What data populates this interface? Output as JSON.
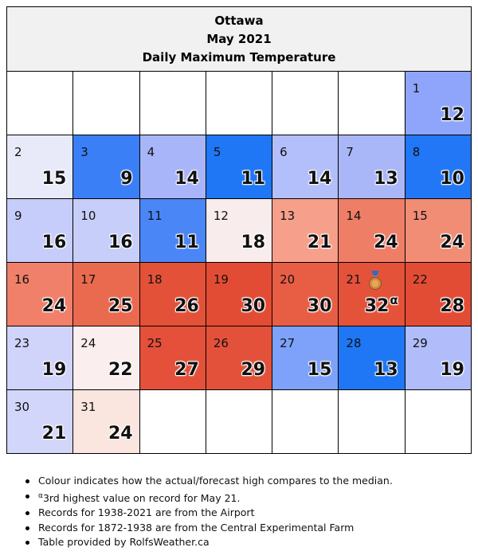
{
  "header": {
    "city": "Ottawa",
    "month": "May 2021",
    "subtitle": "Daily Maximum Temperature"
  },
  "chart_data": {
    "type": "table",
    "title": "Ottawa May 2021 Daily Maximum Temperature",
    "start_weekday_index": 6,
    "days": [
      {
        "day": "1",
        "temp": "12",
        "color": "#8ea5fb"
      },
      {
        "day": "2",
        "temp": "15",
        "color": "#e8eafa"
      },
      {
        "day": "3",
        "temp": "9",
        "color": "#3b7ff7"
      },
      {
        "day": "4",
        "temp": "14",
        "color": "#a8b6f9"
      },
      {
        "day": "5",
        "temp": "11",
        "color": "#1f77f5"
      },
      {
        "day": "6",
        "temp": "14",
        "color": "#b3bffa"
      },
      {
        "day": "7",
        "temp": "13",
        "color": "#a9b7f9"
      },
      {
        "day": "8",
        "temp": "10",
        "color": "#2177f5"
      },
      {
        "day": "9",
        "temp": "16",
        "color": "#c6cdfa"
      },
      {
        "day": "10",
        "temp": "16",
        "color": "#c8cefa"
      },
      {
        "day": "11",
        "temp": "11",
        "color": "#4b86f6"
      },
      {
        "day": "12",
        "temp": "18",
        "color": "#f8ecec"
      },
      {
        "day": "13",
        "temp": "21",
        "color": "#f6a08c"
      },
      {
        "day": "14",
        "temp": "24",
        "color": "#ef7e66"
      },
      {
        "day": "15",
        "temp": "24",
        "color": "#f18c75"
      },
      {
        "day": "16",
        "temp": "24",
        "color": "#f08069"
      },
      {
        "day": "17",
        "temp": "25",
        "color": "#ea6a50"
      },
      {
        "day": "18",
        "temp": "26",
        "color": "#e45139"
      },
      {
        "day": "19",
        "temp": "30",
        "color": "#e34c34"
      },
      {
        "day": "20",
        "temp": "30",
        "color": "#e85e44"
      },
      {
        "day": "21",
        "temp": "32",
        "record_mark": "α",
        "medal": "bronze-medal",
        "color": "#e4523a"
      },
      {
        "day": "22",
        "temp": "28",
        "color": "#e34c34"
      },
      {
        "day": "23",
        "temp": "19",
        "color": "#d0d3fa"
      },
      {
        "day": "24",
        "temp": "22",
        "color": "#fbeeee"
      },
      {
        "day": "25",
        "temp": "27",
        "color": "#e4503a"
      },
      {
        "day": "26",
        "temp": "29",
        "color": "#e4513a"
      },
      {
        "day": "27",
        "temp": "15",
        "color": "#7ea2f9"
      },
      {
        "day": "28",
        "temp": "13",
        "color": "#1f77f5"
      },
      {
        "day": "29",
        "temp": "19",
        "color": "#b1bdfa"
      },
      {
        "day": "30",
        "temp": "21",
        "color": "#d2d6fa"
      },
      {
        "day": "31",
        "temp": "24",
        "color": "#fbe5df"
      }
    ]
  },
  "notes": {
    "line1": "Colour indicates how the actual/forecast high compares to the median.",
    "line2_mark": "α",
    "line2": "3rd highest value on record for May 21.",
    "line3": "Records for 1938-2021 are from the Airport",
    "line4": "Records for 1872-1938 are from the Central Experimental Farm",
    "line5": "Table provided by RolfsWeather.ca"
  }
}
